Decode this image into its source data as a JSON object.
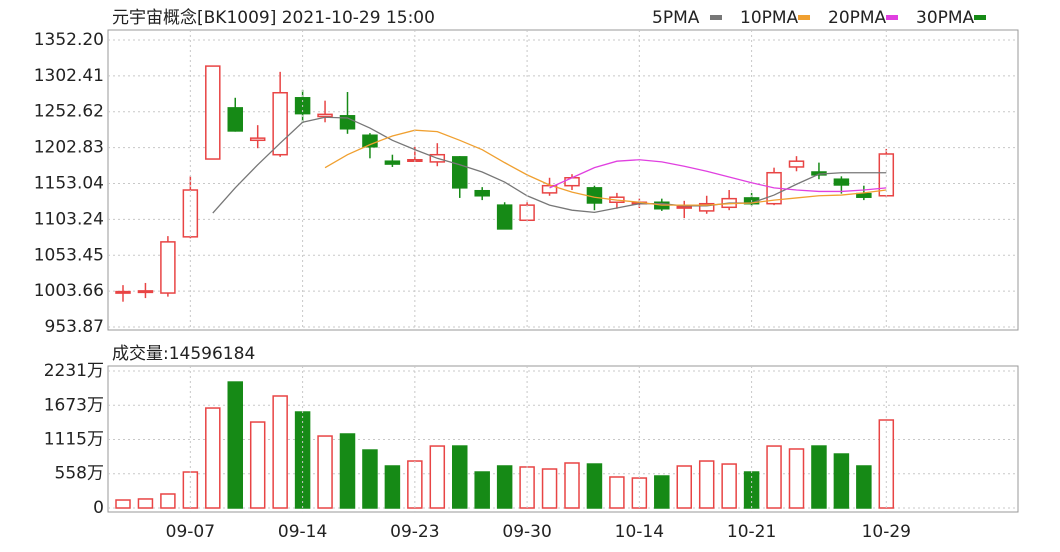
{
  "chart_data": [
    {
      "type": "candlestick",
      "title": "元宇宙概念[BK1009] 2021-10-29 15:00",
      "open": [
        1002,
        1002,
        1001,
        1079,
        1187,
        1258,
        1213,
        1193,
        1272,
        1246,
        1247,
        1220,
        1184,
        1185,
        1183,
        1190,
        1143,
        1123,
        1102,
        1140,
        1150,
        1147,
        1127,
        1126,
        1127,
        1120,
        1115,
        1120,
        1133,
        1125,
        1176,
        1169,
        1159,
        1139,
        1136
      ],
      "high": [
        1012,
        1015,
        1080,
        1163,
        1316,
        1272,
        1234,
        1308,
        1283,
        1268,
        1280,
        1223,
        1193,
        1204,
        1209,
        1191,
        1148,
        1127,
        1127,
        1161,
        1166,
        1150,
        1140,
        1132,
        1132,
        1129,
        1136,
        1144,
        1140,
        1175,
        1191,
        1182,
        1163,
        1150,
        1201
      ],
      "low": [
        989,
        994,
        996,
        1077,
        1187,
        1225,
        1202,
        1190,
        1237,
        1238,
        1222,
        1188,
        1176,
        1183,
        1177,
        1133,
        1130,
        1090,
        1101,
        1136,
        1144,
        1116,
        1118,
        1119,
        1115,
        1105,
        1111,
        1116,
        1122,
        1123,
        1170,
        1159,
        1139,
        1130,
        1134
      ],
      "close": [
        1003,
        1004,
        1072,
        1144,
        1316,
        1226,
        1216,
        1279,
        1250,
        1249,
        1229,
        1204,
        1180,
        1186,
        1193,
        1147,
        1136,
        1090,
        1123,
        1150,
        1161,
        1126,
        1134,
        1127,
        1118,
        1121,
        1125,
        1132,
        1125,
        1168,
        1184,
        1165,
        1151,
        1134,
        1194
      ],
      "up_color": "#e84444",
      "down_color": "#168a16",
      "ylim": [
        953.87,
        1352.2
      ],
      "yticks": [
        {
          "value": 1352.2,
          "label": "1352.20"
        },
        1302.41,
        1252.62,
        1202.83,
        1153.04,
        1103.24,
        1053.45,
        1003.66,
        953.87
      ],
      "grid": true,
      "ma_series": [
        {
          "name": "5PMA",
          "color": "#777777",
          "values": [
            null,
            null,
            null,
            null,
            1112,
            1147,
            1179,
            1209,
            1238,
            1245,
            1244,
            1230,
            1213,
            1200,
            1188,
            1179,
            1169,
            1155,
            1136,
            1123,
            1116,
            1113,
            1119,
            1125,
            1125,
            1122,
            1122,
            1126,
            1126,
            1137,
            1152,
            1166,
            1168,
            1168,
            1168
          ]
        },
        {
          "name": "10PMA",
          "color": "#f0a030",
          "values": [
            null,
            null,
            null,
            null,
            null,
            null,
            null,
            null,
            null,
            1175,
            1193,
            1207,
            1219,
            1227,
            1225,
            1213,
            1200,
            1182,
            1165,
            1151,
            1141,
            1134,
            1130,
            1127,
            1123,
            1123,
            1123,
            1125,
            1126,
            1130,
            1133,
            1136,
            1137,
            1140,
            1144
          ]
        },
        {
          "name": "20PMA",
          "color": "#e040e0",
          "values": [
            null,
            null,
            null,
            null,
            null,
            null,
            null,
            null,
            null,
            null,
            null,
            null,
            null,
            null,
            null,
            null,
            null,
            null,
            null,
            1147,
            1161,
            1175,
            1184,
            1186,
            1183,
            1177,
            1170,
            1162,
            1154,
            1147,
            1144,
            1142,
            1142,
            1144,
            1147
          ]
        },
        {
          "name": "30PMA",
          "color": "#168a16",
          "values": [
            null,
            null,
            null,
            null,
            null,
            null,
            null,
            null,
            null,
            null,
            null,
            null,
            null,
            null,
            null,
            null,
            null,
            null,
            null,
            null,
            null,
            null,
            null,
            null,
            null,
            null,
            null,
            null,
            null,
            null,
            null,
            null,
            null,
            null,
            null
          ]
        }
      ]
    },
    {
      "type": "bar",
      "label": "成交量:14596184",
      "categories": [
        null,
        null,
        null,
        "09-07",
        null,
        null,
        null,
        null,
        "09-14",
        null,
        null,
        null,
        null,
        "09-23",
        null,
        null,
        null,
        null,
        "09-30",
        null,
        null,
        null,
        null,
        "10-14",
        null,
        null,
        null,
        null,
        "10-21",
        null,
        null,
        null,
        null,
        null,
        "10-29"
      ],
      "values": [
        130,
        147,
        228,
        586,
        1628,
        2051,
        1400,
        1824,
        1563,
        1172,
        1205,
        944,
        684,
        765,
        1009,
        1009,
        586,
        684,
        668,
        635,
        733,
        716,
        505,
        488,
        521,
        684,
        765,
        716,
        586,
        1009,
        961,
        1009,
        879,
        684,
        1433
      ],
      "ylim": [
        0,
        2231
      ],
      "yticks": [
        {
          "value": 2231,
          "label": "2231万"
        },
        {
          "value": 1673,
          "label": "1673万"
        },
        {
          "value": 1115,
          "label": "1115万"
        },
        {
          "value": 558,
          "label": "558万"
        },
        0
      ],
      "grid": true
    }
  ]
}
